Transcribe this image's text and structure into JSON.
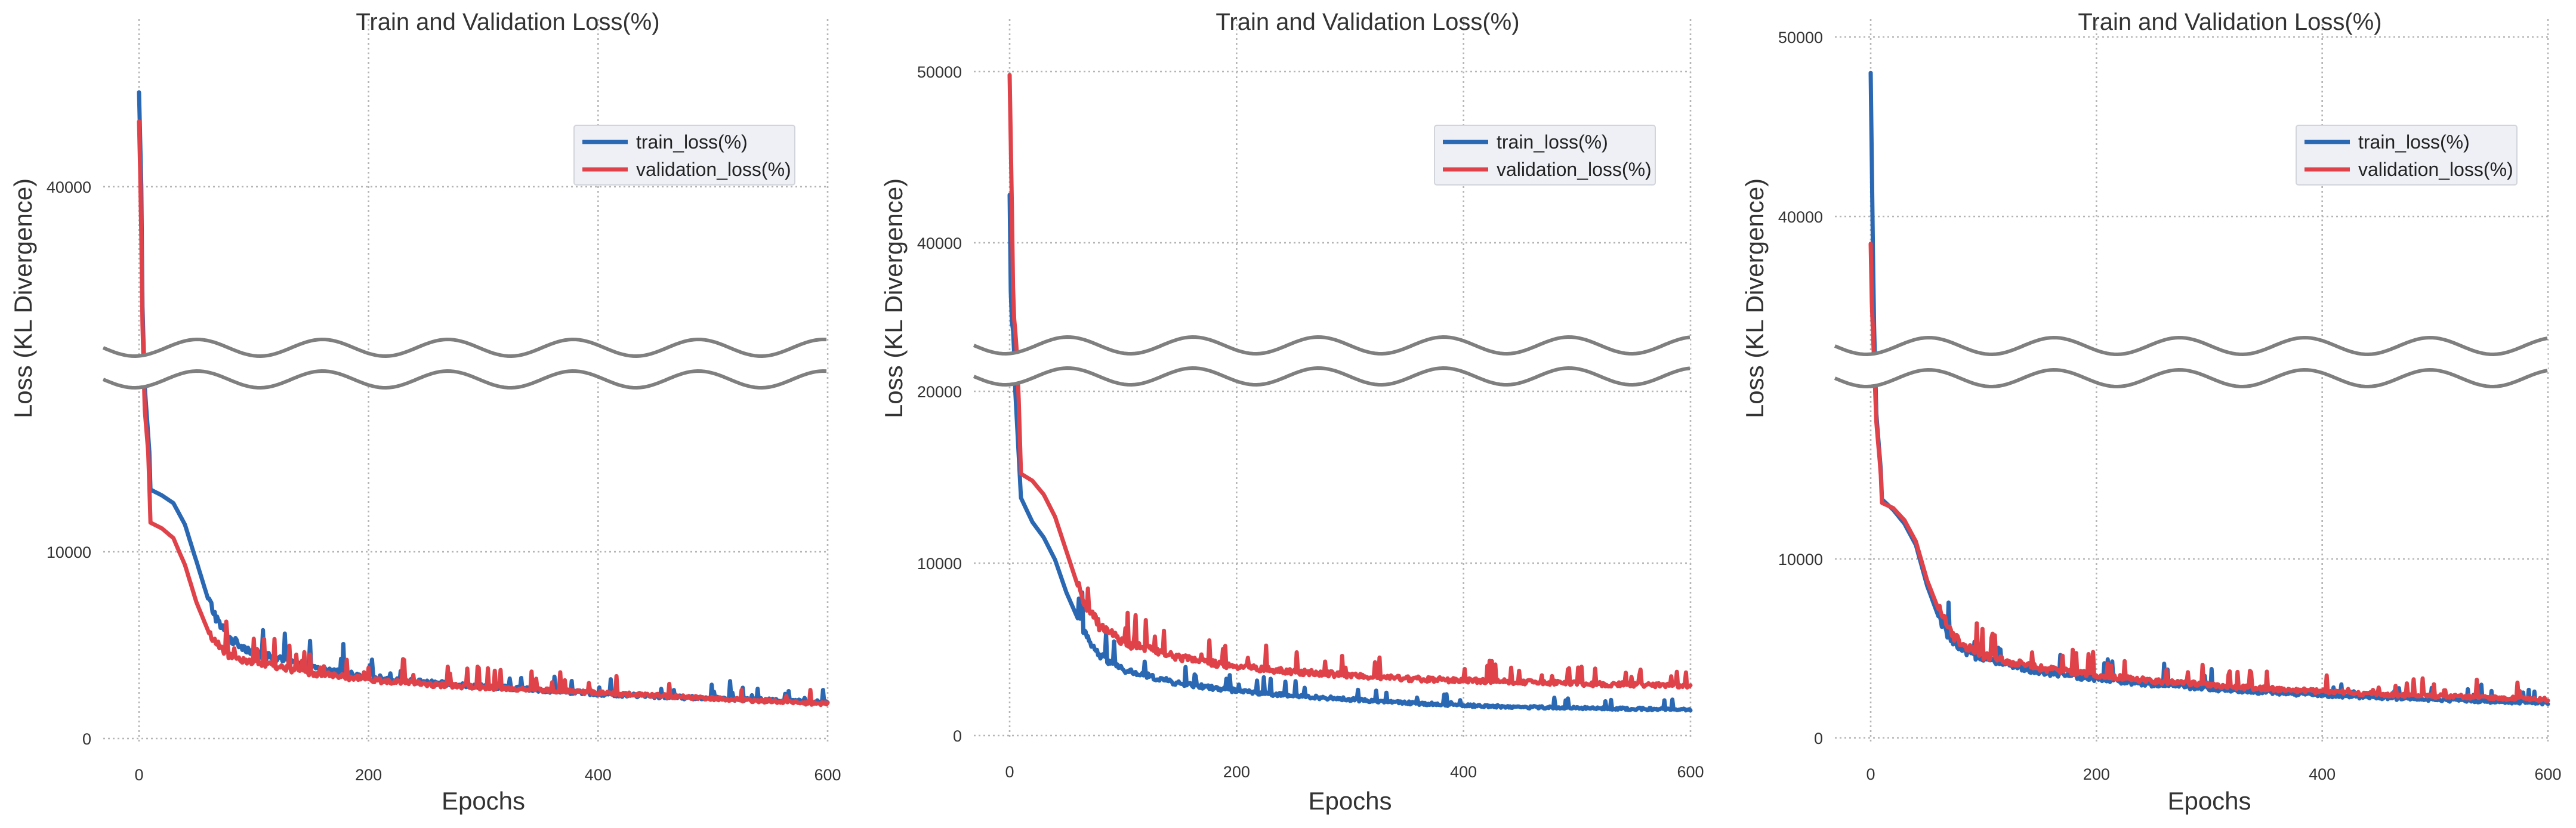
{
  "chart_data": [
    {
      "type": "line",
      "title": "Train and Validation Loss(%)",
      "xlabel": "Epochs",
      "ylabel": "Loss (KL Divergence)",
      "xlim": [
        0,
        600
      ],
      "x_ticks": [
        0,
        200,
        400,
        600
      ],
      "y_ticks": [
        0,
        10000,
        40000
      ],
      "axis_break": "broken y-axis between about 15000 and 35000",
      "grid": true,
      "legend_position": "top-right",
      "series": [
        {
          "name": "train_loss(%)",
          "color": "#2a68b3",
          "x": [
            0,
            2,
            5,
            10,
            20,
            30,
            40,
            50,
            60,
            70,
            80,
            100,
            150,
            200,
            250,
            300,
            350,
            400,
            450,
            500,
            550,
            600
          ],
          "y": [
            45800,
            40000,
            24000,
            13200,
            12900,
            12500,
            11400,
            9500,
            7500,
            6100,
            5300,
            4600,
            3800,
            3300,
            3000,
            2800,
            2600,
            2400,
            2250,
            2150,
            2050,
            1950
          ]
        },
        {
          "name": "validation_loss(%)",
          "color": "#e0424a",
          "x": [
            0,
            2,
            5,
            10,
            20,
            30,
            40,
            50,
            60,
            70,
            80,
            100,
            150,
            200,
            250,
            300,
            350,
            400,
            450,
            500,
            550,
            600
          ],
          "y": [
            44000,
            38000,
            21000,
            11500,
            11200,
            10700,
            9300,
            7300,
            5800,
            4900,
            4400,
            4100,
            3500,
            3150,
            2900,
            2750,
            2600,
            2450,
            2300,
            2150,
            2000,
            1850
          ]
        }
      ]
    },
    {
      "type": "line",
      "title": "Train and Validation Loss(%)",
      "xlabel": "Epochs",
      "ylabel": "Loss (KL Divergence)",
      "xlim": [
        0,
        600
      ],
      "x_ticks": [
        0,
        200,
        400,
        600
      ],
      "y_ticks": [
        0,
        10000,
        20000,
        40000,
        50000
      ],
      "axis_break": "broken y-axis between about 25000 and 35000",
      "grid": true,
      "legend_position": "top-right",
      "series": [
        {
          "name": "train_loss(%)",
          "color": "#2a68b3",
          "x": [
            0,
            2,
            5,
            10,
            20,
            30,
            40,
            50,
            60,
            70,
            80,
            100,
            150,
            200,
            250,
            300,
            350,
            400,
            450,
            500,
            550,
            600
          ],
          "y": [
            42800,
            30000,
            20000,
            13800,
            12400,
            11500,
            10200,
            8300,
            6800,
            5400,
            4600,
            3800,
            3000,
            2600,
            2300,
            2100,
            1900,
            1750,
            1650,
            1600,
            1550,
            1500
          ]
        },
        {
          "name": "validation_loss(%)",
          "color": "#e0424a",
          "x": [
            0,
            2,
            5,
            10,
            20,
            30,
            40,
            50,
            60,
            70,
            80,
            100,
            150,
            200,
            250,
            300,
            350,
            400,
            450,
            500,
            550,
            600
          ],
          "y": [
            49800,
            42000,
            26000,
            15200,
            14800,
            14000,
            12700,
            10700,
            8700,
            7200,
            6300,
            5400,
            4500,
            4000,
            3700,
            3500,
            3300,
            3200,
            3100,
            3000,
            2950,
            2900
          ]
        }
      ]
    },
    {
      "type": "line",
      "title": "Train and Validation Loss(%)",
      "xlabel": "Epochs",
      "ylabel": "Loss (KL Divergence)",
      "xlim": [
        0,
        600
      ],
      "x_ticks": [
        0,
        200,
        400,
        600
      ],
      "y_ticks": [
        0,
        10000,
        40000,
        50000
      ],
      "axis_break": "broken y-axis between about 15000 and 35000",
      "grid": true,
      "legend_position": "top-right",
      "series": [
        {
          "name": "train_loss(%)",
          "color": "#2a68b3",
          "x": [
            0,
            2,
            5,
            10,
            20,
            30,
            40,
            50,
            60,
            70,
            80,
            100,
            150,
            200,
            250,
            300,
            350,
            400,
            450,
            500,
            550,
            600
          ],
          "y": [
            48000,
            38000,
            22000,
            13400,
            12800,
            12000,
            10800,
            8500,
            6800,
            5600,
            4900,
            4400,
            3700,
            3300,
            3000,
            2750,
            2550,
            2400,
            2250,
            2150,
            2050,
            1950
          ]
        },
        {
          "name": "validation_loss(%)",
          "color": "#e0424a",
          "x": [
            0,
            2,
            5,
            10,
            20,
            30,
            40,
            50,
            60,
            70,
            80,
            100,
            150,
            200,
            250,
            300,
            350,
            400,
            450,
            500,
            550,
            600
          ],
          "y": [
            38500,
            32000,
            21000,
            13200,
            12900,
            12200,
            11000,
            8800,
            7200,
            6000,
            5200,
            4600,
            3900,
            3500,
            3200,
            2950,
            2750,
            2600,
            2450,
            2350,
            2250,
            2150
          ]
        }
      ]
    }
  ]
}
